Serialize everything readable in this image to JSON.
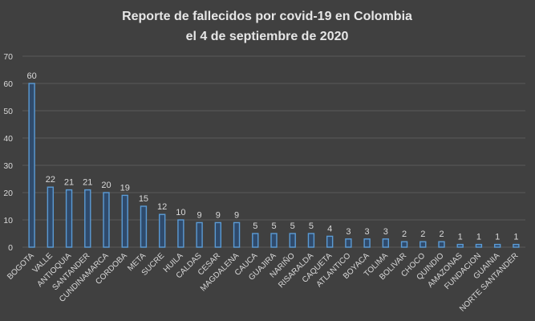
{
  "chart_data": {
    "type": "bar",
    "title_lines": [
      "Reporte de fallecidos por covid-19 en Colombia",
      "el 4 de septiembre de 2020"
    ],
    "categories": [
      "BOGOTA",
      "VALLE",
      "ANTIOQUIA",
      "SANTANDER",
      "CUNDINAMARCA",
      "CORDOBA",
      "META",
      "SUCRE",
      "HUILA",
      "CALDAS",
      "CESAR",
      "MAGDALENA",
      "CAUCA",
      "GUAJIRA",
      "NARIÑO",
      "RISARALDA",
      "CAQUETA",
      "ATLANTICO",
      "BOYACA",
      "TOLIMA",
      "BOLIVAR",
      "CHOCO",
      "QUINDIO",
      "AMAZONAS",
      "FUNDACION",
      "GUAINIA",
      "NORTE SANTANDER"
    ],
    "values": [
      60,
      22,
      21,
      21,
      20,
      19,
      15,
      12,
      10,
      9,
      9,
      9,
      5,
      5,
      5,
      5,
      4,
      3,
      3,
      3,
      2,
      2,
      2,
      1,
      1,
      1,
      1
    ],
    "ylim": [
      0,
      70
    ],
    "yticks": [
      0,
      10,
      20,
      30,
      40,
      50,
      60,
      70
    ],
    "grid": true,
    "data_labels": true,
    "colors": {
      "background": "#404040",
      "bar_fill": "#2f4a6b",
      "bar_edge": "#5b9bd5",
      "text": "#d9d9d9",
      "grid": "#5a5a5a"
    }
  }
}
